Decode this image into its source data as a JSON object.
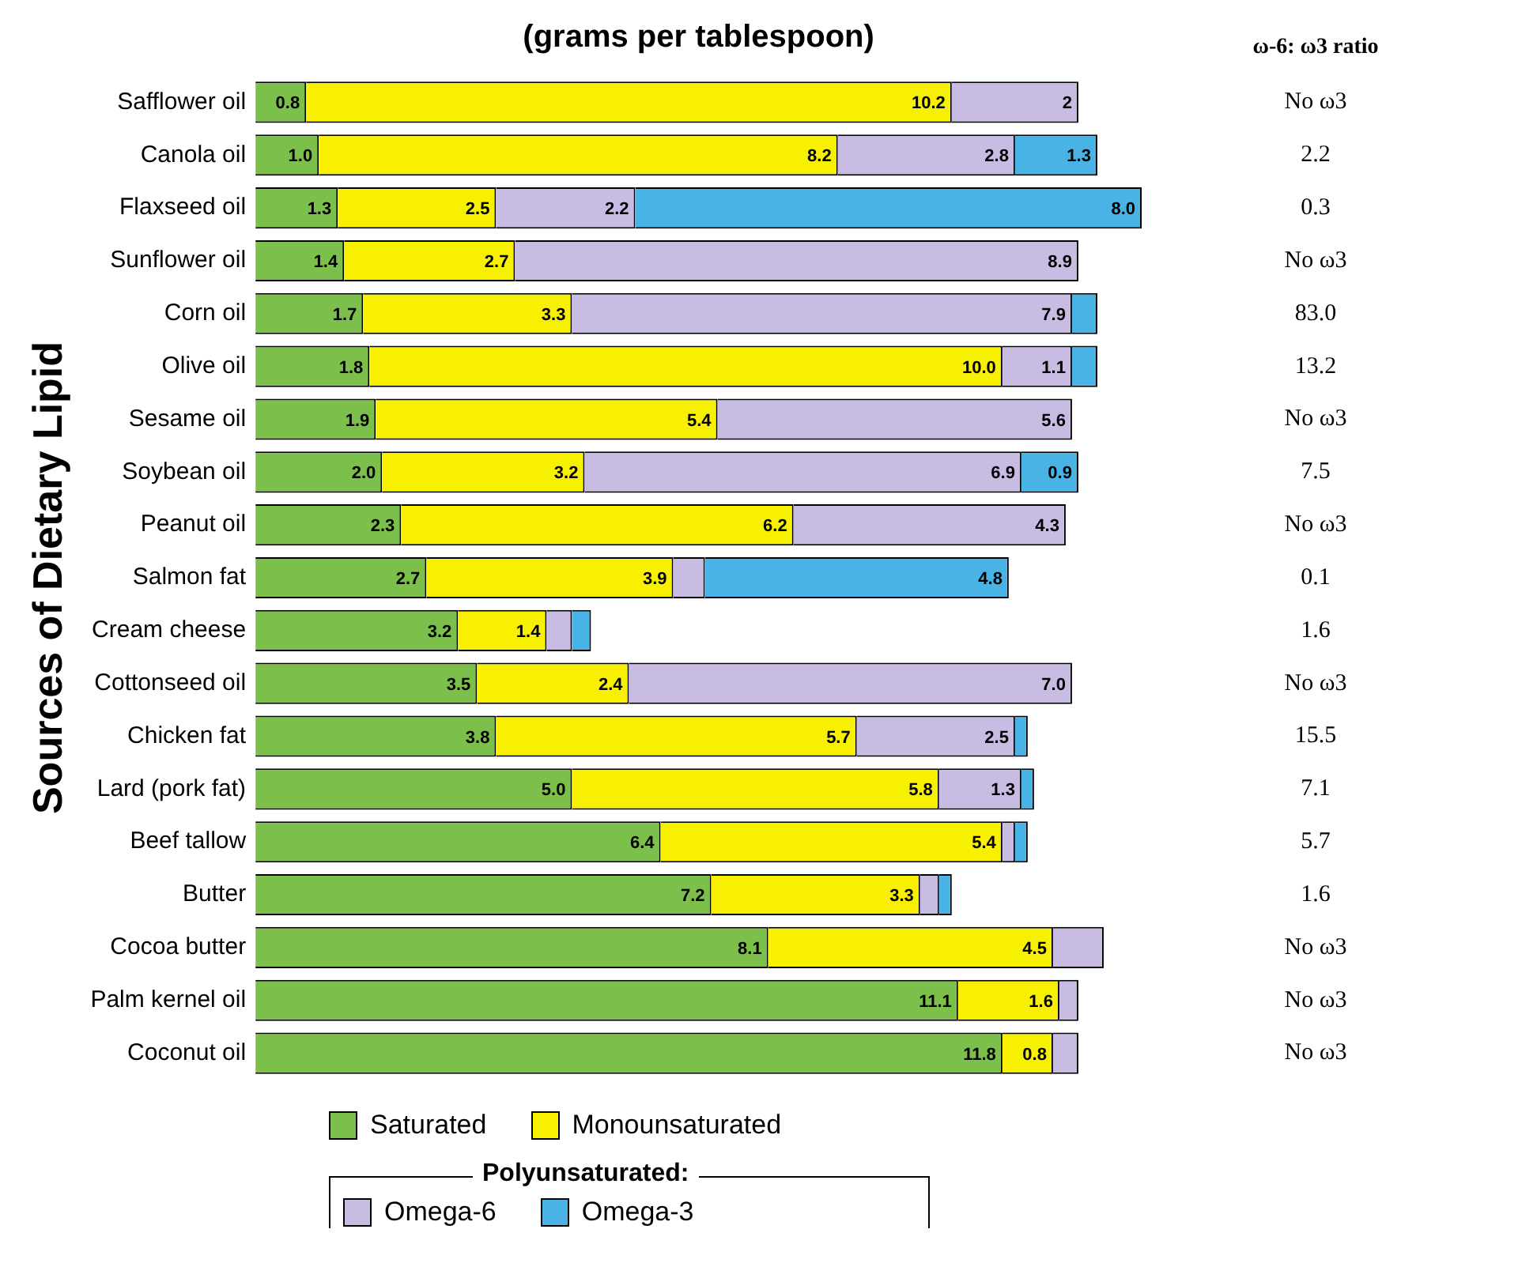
{
  "chart_data": {
    "type": "bar",
    "orientation": "horizontal",
    "stacked": true,
    "title": "(grams per tablespoon)",
    "ylabel": "Sources of Dietary Lipid",
    "categories": [
      "Safflower oil",
      "Canola oil",
      "Flaxseed oil",
      "Sunflower oil",
      "Corn oil",
      "Olive oil",
      "Sesame oil",
      "Soybean oil",
      "Peanut oil",
      "Salmon fat",
      "Cream cheese",
      "Cottonseed oil",
      "Chicken fat",
      "Lard (pork fat)",
      "Beef tallow",
      "Butter",
      "Cocoa butter",
      "Palm kernel oil",
      "Coconut oil"
    ],
    "xlim": [
      0,
      14
    ],
    "tick_labels": "y",
    "grid": false,
    "legend": "bottom",
    "series": [
      {
        "name": "Saturated",
        "color": "#7cbf4a",
        "values": [
          0.8,
          1.0,
          1.3,
          1.4,
          1.7,
          1.8,
          1.9,
          2.0,
          2.3,
          2.7,
          3.2,
          3.5,
          3.8,
          5.0,
          6.4,
          7.2,
          8.1,
          11.1,
          11.8
        ],
        "value_labels": [
          "0.8",
          "1.0",
          "1.3",
          "1.4",
          "1.7",
          "1.8",
          "1.9",
          "2.0",
          "2.3",
          "2.7",
          "3.2",
          "3.5",
          "3.8",
          "5.0",
          "6.4",
          "7.2",
          "8.1",
          "11.1",
          "11.8"
        ]
      },
      {
        "name": "Monounsaturated",
        "color": "#f7f000",
        "values": [
          10.2,
          8.2,
          2.5,
          2.7,
          3.3,
          10.0,
          5.4,
          3.2,
          6.2,
          3.9,
          1.4,
          2.4,
          5.7,
          5.8,
          5.4,
          3.3,
          4.5,
          1.6,
          0.8
        ],
        "value_labels": [
          "10.2",
          "8.2",
          "2.5",
          "2.7",
          "3.3",
          "10.0",
          "5.4",
          "3.2",
          "6.2",
          "3.9",
          "1.4",
          "2.4",
          "5.7",
          "5.8",
          "5.4",
          "3.3",
          "4.5",
          "1.6",
          "0.8"
        ]
      },
      {
        "name": "Omega-6",
        "color": "#c9bce3",
        "values": [
          2,
          2.8,
          2.2,
          8.9,
          7.9,
          1.1,
          5.6,
          6.9,
          4.3,
          0.5,
          0.4,
          7.0,
          2.5,
          1.3,
          0.2,
          0.3,
          0.8,
          0.3,
          0.4
        ],
        "value_labels": [
          "2",
          "2.8",
          "2.2",
          "8.9",
          "7.9",
          "1.1",
          "5.6",
          "6.9",
          "4.3",
          null,
          null,
          "7.0",
          "2.5",
          "1.3",
          null,
          null,
          null,
          null,
          null
        ]
      },
      {
        "name": "Omega-3",
        "color": "#49b3e6",
        "values": [
          null,
          1.3,
          8.0,
          null,
          0.4,
          0.4,
          null,
          0.9,
          null,
          4.8,
          0.3,
          null,
          0.2,
          0.2,
          0.2,
          0.2,
          null,
          null,
          null
        ],
        "value_labels": [
          null,
          "1.3",
          "8.0",
          null,
          null,
          null,
          null,
          "0.9",
          null,
          "4.8",
          null,
          null,
          null,
          null,
          null,
          null,
          null,
          null,
          null
        ]
      }
    ],
    "annotations": [
      "ω-6: ω3 ratio",
      "Polyunsaturated:",
      "No ω3",
      "2.2",
      "0.3",
      "No ω3",
      "83.0",
      "13.2",
      "No ω3",
      "7.5",
      "No ω3",
      "0.1",
      "1.6",
      "No ω3",
      "15.5",
      "7.1",
      "5.7",
      "1.6",
      "No ω3",
      "No ω3",
      "No ω3"
    ]
  }
}
